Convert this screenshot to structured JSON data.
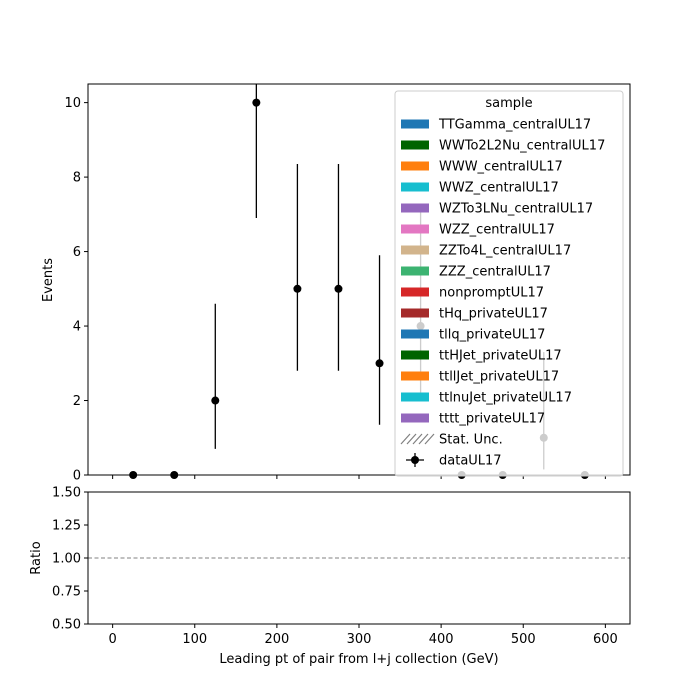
{
  "chart_data": [
    {
      "type": "scatter",
      "xlabel": "",
      "ylabel": "Events",
      "xlim": [
        -30,
        630
      ],
      "ylim": [
        0,
        10.5
      ],
      "xticks": [
        0,
        100,
        200,
        300,
        400,
        500,
        600
      ],
      "yticks": [
        0,
        2,
        4,
        6,
        8,
        10
      ],
      "grid": false,
      "legend": {
        "title": "sample",
        "placement": "top-right",
        "entries": [
          {
            "label": "TTGamma_centralUL17",
            "color": "#1f77b4",
            "kind": "patch"
          },
          {
            "label": "WWTo2L2Nu_centralUL17",
            "color": "#006400",
            "kind": "patch"
          },
          {
            "label": "WWW_centralUL17",
            "color": "#ff7f0e",
            "kind": "patch"
          },
          {
            "label": "WWZ_centralUL17",
            "color": "#17becf",
            "kind": "patch"
          },
          {
            "label": "WZTo3LNu_centralUL17",
            "color": "#9467bd",
            "kind": "patch"
          },
          {
            "label": "WZZ_centralUL17",
            "color": "#e377c2",
            "kind": "patch"
          },
          {
            "label": "ZZTo4L_centralUL17",
            "color": "#d2b48c",
            "kind": "patch"
          },
          {
            "label": "ZZZ_centralUL17",
            "color": "#3cb371",
            "kind": "patch"
          },
          {
            "label": "nonpromptUL17",
            "color": "#d62728",
            "kind": "patch"
          },
          {
            "label": "tHq_privateUL17",
            "color": "#a52a2a",
            "kind": "patch"
          },
          {
            "label": "tllq_privateUL17",
            "color": "#1f77b4",
            "kind": "patch"
          },
          {
            "label": "ttHJet_privateUL17",
            "color": "#006400",
            "kind": "patch"
          },
          {
            "label": "ttllJet_privateUL17",
            "color": "#ff7f0e",
            "kind": "patch"
          },
          {
            "label": "ttlnuJet_privateUL17",
            "color": "#17becf",
            "kind": "patch"
          },
          {
            "label": "tttt_privateUL17",
            "color": "#9467bd",
            "kind": "patch"
          },
          {
            "label": "Stat. Unc.",
            "color": "#808080",
            "kind": "hatch"
          },
          {
            "label": "dataUL17",
            "color": "#000000",
            "kind": "errorbar"
          }
        ]
      },
      "series": [
        {
          "name": "dataUL17",
          "points": [
            {
              "x": 25,
              "y": 0,
              "ylo": 0,
              "yhi": 0
            },
            {
              "x": 75,
              "y": 0,
              "ylo": 0,
              "yhi": 0
            },
            {
              "x": 125,
              "y": 2,
              "ylo": 0.7,
              "yhi": 4.6
            },
            {
              "x": 175,
              "y": 10,
              "ylo": 6.9,
              "yhi": 10.5
            },
            {
              "x": 225,
              "y": 5,
              "ylo": 2.8,
              "yhi": 8.35
            },
            {
              "x": 275,
              "y": 5,
              "ylo": 2.8,
              "yhi": 8.35
            },
            {
              "x": 325,
              "y": 3,
              "ylo": 1.35,
              "yhi": 5.9
            },
            {
              "x": 375,
              "y": 4,
              "ylo": 2.0,
              "yhi": 7.2
            },
            {
              "x": 425,
              "y": 0,
              "ylo": 0,
              "yhi": 0
            },
            {
              "x": 475,
              "y": 0,
              "ylo": 0,
              "yhi": 0
            },
            {
              "x": 525,
              "y": 1,
              "ylo": 0.15,
              "yhi": 3.3
            },
            {
              "x": 575,
              "y": 0,
              "ylo": 0,
              "yhi": 0
            }
          ]
        }
      ]
    },
    {
      "type": "line",
      "xlabel": "Leading pt of pair from l+j collection (GeV)",
      "ylabel": "Ratio",
      "xlim": [
        -30,
        630
      ],
      "ylim": [
        0.5,
        1.5
      ],
      "xticks": [
        0,
        100,
        200,
        300,
        400,
        500,
        600
      ],
      "yticks": [
        0.5,
        0.75,
        1.0,
        1.25,
        1.5
      ],
      "ytick_labels": [
        "0.50",
        "0.75",
        "1.00",
        "1.25",
        "1.50"
      ],
      "reference_line": {
        "y": 1.0,
        "style": "dashed",
        "color": "#808080"
      },
      "grid": false
    }
  ]
}
